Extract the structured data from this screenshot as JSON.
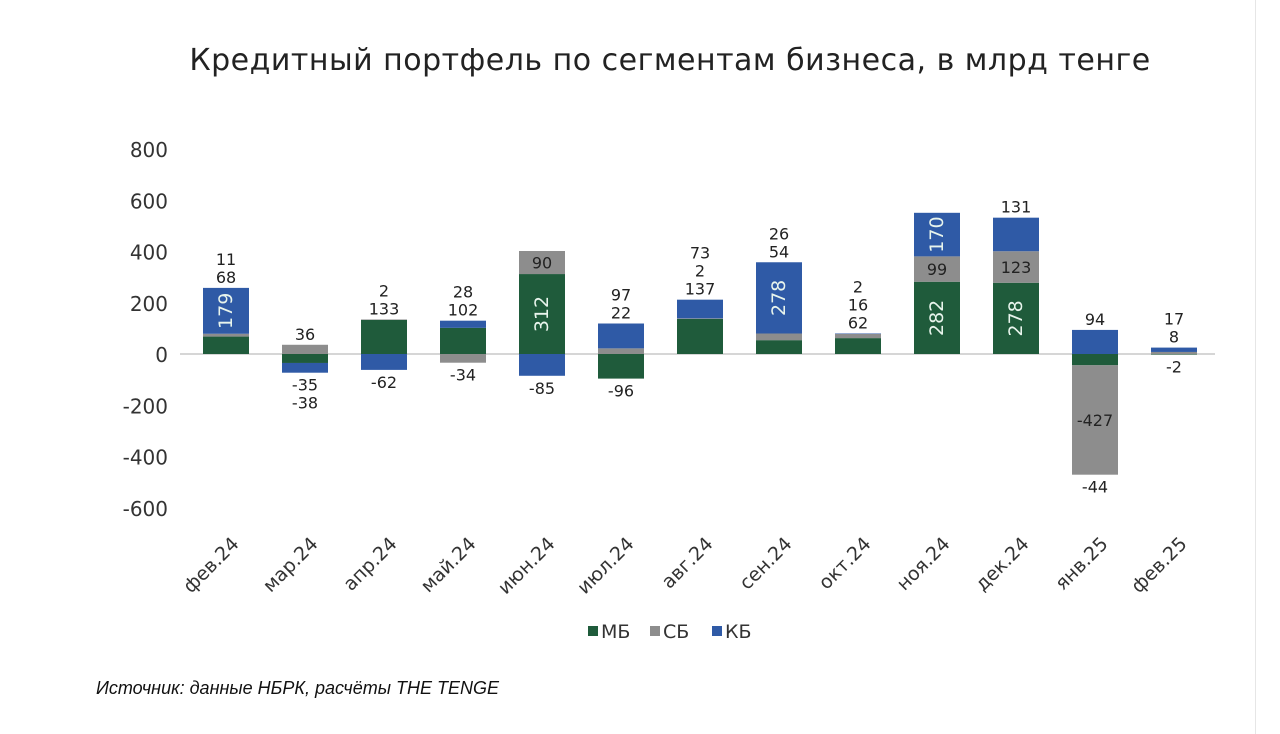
{
  "chart_data": {
    "type": "bar",
    "stacked": true,
    "title": "Кредитный портфель по сегментам бизнеса, в млрд тенге",
    "xlabel": "",
    "ylabel": "",
    "ylim": [
      -600,
      800
    ],
    "yticks": [
      800,
      600,
      400,
      200,
      0,
      -200,
      -400,
      -600
    ],
    "grid": false,
    "legend_position": "bottom",
    "categories": [
      "фев.24",
      "мар.24",
      "апр.24",
      "май.24",
      "июн.24",
      "июл.24",
      "авг.24",
      "сен.24",
      "окт.24",
      "ноя.24",
      "дек.24",
      "янв.25",
      "фев.25"
    ],
    "series": [
      {
        "name": "МБ",
        "color": "#1f5b3b",
        "values": [
          68,
          -35,
          133,
          102,
          312,
          -96,
          137,
          54,
          62,
          282,
          278,
          -44,
          -2
        ]
      },
      {
        "name": "СБ",
        "color": "#8d8d8d",
        "values": [
          11,
          36,
          2,
          -34,
          90,
          22,
          2,
          26,
          16,
          99,
          123,
          -427,
          8
        ]
      },
      {
        "name": "КБ",
        "color": "#2f5aa6",
        "values": [
          179,
          -38,
          -62,
          28,
          -85,
          97,
          73,
          278,
          2,
          170,
          131,
          94,
          17
        ]
      }
    ]
  },
  "source": "Источник: данные НБРК, расчёты THE TENGE"
}
